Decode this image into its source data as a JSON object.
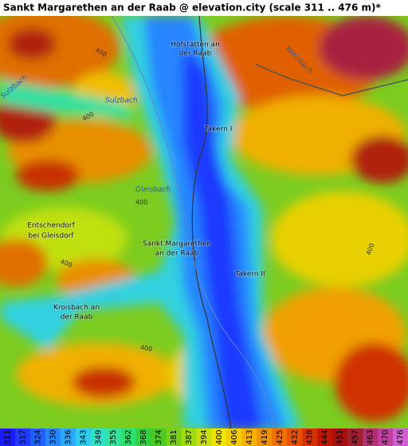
{
  "title": "Sankt Margarethen an der Raab @ elevation.city (scale 311 .. 476 m)*",
  "places": [
    {
      "label": "Hofstätten an"
    },
    {
      "label": "der Raab"
    },
    {
      "label": "Takern I"
    },
    {
      "label": "Entschendorf"
    },
    {
      "label": "bei Gleisdorf"
    },
    {
      "label": "Sankt Margarethen"
    },
    {
      "label": "an der Raab"
    },
    {
      "label": "Takern II"
    },
    {
      "label": "Kroisbach an"
    },
    {
      "label": "der Raab"
    }
  ],
  "streams": [
    {
      "label": "Sulzbach"
    },
    {
      "label": "Sulzbach"
    },
    {
      "label": "Gleisbach"
    },
    {
      "label": "Weizbach"
    }
  ],
  "contours": [
    {
      "label": "400"
    },
    {
      "label": "400"
    },
    {
      "label": "400"
    },
    {
      "label": "400"
    },
    {
      "label": "400"
    },
    {
      "label": "400"
    }
  ],
  "scale": [
    {
      "value": 311,
      "color": "#1a1aff"
    },
    {
      "value": 317,
      "color": "#1f3bff"
    },
    {
      "value": 324,
      "color": "#2060ff"
    },
    {
      "value": 330,
      "color": "#2585ff"
    },
    {
      "value": 336,
      "color": "#2aa9ff"
    },
    {
      "value": 343,
      "color": "#30cdf0"
    },
    {
      "value": 349,
      "color": "#30e0c8"
    },
    {
      "value": 355,
      "color": "#2ee69a"
    },
    {
      "value": 362,
      "color": "#2de070"
    },
    {
      "value": 368,
      "color": "#30d040"
    },
    {
      "value": 374,
      "color": "#4cc820"
    },
    {
      "value": 381,
      "color": "#78d018"
    },
    {
      "value": 387,
      "color": "#a0da10"
    },
    {
      "value": 394,
      "color": "#c8e010"
    },
    {
      "value": 400,
      "color": "#f0e400"
    },
    {
      "value": 406,
      "color": "#f5cc00"
    },
    {
      "value": 413,
      "color": "#f5b000"
    },
    {
      "value": 419,
      "color": "#f29000"
    },
    {
      "value": 425,
      "color": "#ee7000"
    },
    {
      "value": 432,
      "color": "#e85000"
    },
    {
      "value": 438,
      "color": "#d83000"
    },
    {
      "value": 444,
      "color": "#c01800"
    },
    {
      "value": 451,
      "color": "#a81010"
    },
    {
      "value": 457,
      "color": "#a02030"
    },
    {
      "value": 463,
      "color": "#b03070"
    },
    {
      "value": 470,
      "color": "#c040a0"
    },
    {
      "value": 476,
      "color": "#d060d0"
    }
  ]
}
